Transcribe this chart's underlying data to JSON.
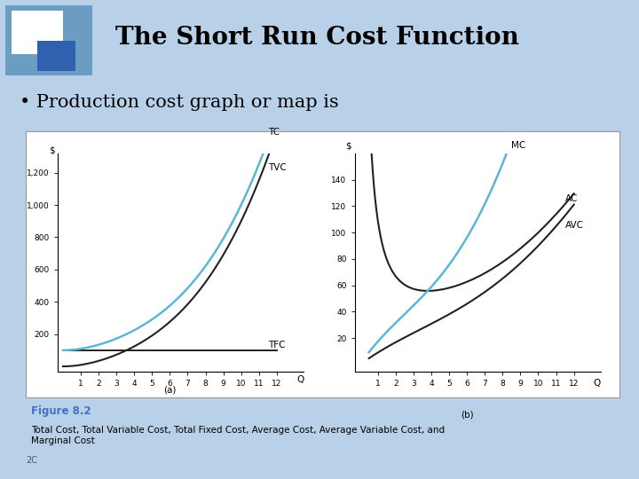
{
  "title": "The Short Run Cost Function",
  "bullet": "• Production cost graph or map is",
  "figure_label_a": "(a)",
  "figure_label_b": "(b)",
  "figure_caption_title": "Figure 8.2",
  "figure_caption": "Total Cost, Total Variable Cost, Total Fixed Cost, Average Cost, Average Variable Cost, and\nMarginal Cost",
  "copyright": "2C",
  "slide_bg": "#B8D0E8",
  "plot_bg": "#FFFFFF",
  "tfc_color": "#222222",
  "tvc_color": "#222222",
  "tc_color": "#5BB8D4",
  "mc_color": "#5BB8D4",
  "ac_color": "#222222",
  "avc_color": "#222222",
  "label_tc": "TC",
  "label_tvc": "TVC",
  "label_tfc": "TFC",
  "label_mc": "MC",
  "label_ac": "AC",
  "label_avc": "AVC",
  "ax_a_yticks": [
    200,
    400,
    600,
    800,
    1000,
    1200
  ],
  "ax_a_xticks": [
    1,
    2,
    3,
    4,
    5,
    6,
    7,
    8,
    9,
    10,
    11,
    12
  ],
  "ax_b_yticks": [
    20,
    40,
    60,
    80,
    100,
    120,
    140
  ],
  "ax_b_xticks": [
    1,
    2,
    3,
    4,
    5,
    6,
    7,
    8,
    9,
    10,
    11,
    12
  ],
  "caption_color": "#4472C4",
  "logo_outer_color": "#6B9DC2",
  "logo_white_color": "#FFFFFF",
  "logo_inner_color": "#3060B0"
}
